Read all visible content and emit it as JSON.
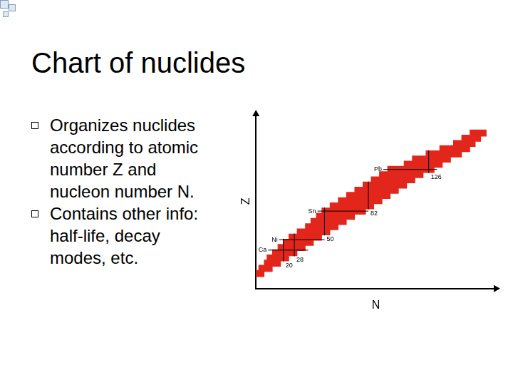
{
  "title": "Chart of nuclides",
  "bullets": [
    [
      "Organizes nuclides",
      "according to atomic",
      "number Z and",
      "nucleon number N."
    ],
    [
      "Contains other info:",
      "half-life, decay",
      "modes, etc."
    ]
  ],
  "chart_data": {
    "type": "bar",
    "orientation": "horizontal",
    "x_label": "N",
    "y_label": "Z",
    "y": [
      2,
      6,
      10,
      14,
      18,
      22,
      26,
      30,
      34,
      38,
      42,
      46,
      50,
      54,
      58,
      62,
      66,
      70,
      74,
      78,
      82,
      86,
      90,
      94,
      98,
      102,
      106,
      110
    ],
    "values": [
      [
        0,
        6
      ],
      [
        2,
        12
      ],
      [
        6,
        18
      ],
      [
        8,
        24
      ],
      [
        12,
        30
      ],
      [
        16,
        36
      ],
      [
        20,
        42
      ],
      [
        24,
        48
      ],
      [
        30,
        54
      ],
      [
        36,
        60
      ],
      [
        40,
        66
      ],
      [
        44,
        72
      ],
      [
        48,
        80
      ],
      [
        54,
        86
      ],
      [
        60,
        92
      ],
      [
        66,
        98
      ],
      [
        72,
        104
      ],
      [
        78,
        110
      ],
      [
        84,
        116
      ],
      [
        90,
        122
      ],
      [
        96,
        130
      ],
      [
        108,
        136
      ],
      [
        114,
        142
      ],
      [
        124,
        150
      ],
      [
        134,
        156
      ],
      [
        144,
        160
      ],
      [
        150,
        164
      ],
      [
        156,
        168
      ]
    ],
    "color": "#e3261b",
    "xlim": [
      0,
      175
    ],
    "ylim": [
      0,
      115
    ],
    "grid": false,
    "tick_labels": false,
    "magic_n": [
      20,
      28,
      50,
      82,
      126
    ],
    "magic_z": [
      {
        "value": 20,
        "label": "Ca"
      },
      {
        "value": 28,
        "label": "Ni"
      },
      {
        "value": 50,
        "label": "Sn"
      },
      {
        "value": 82,
        "label": "Pb"
      }
    ]
  }
}
